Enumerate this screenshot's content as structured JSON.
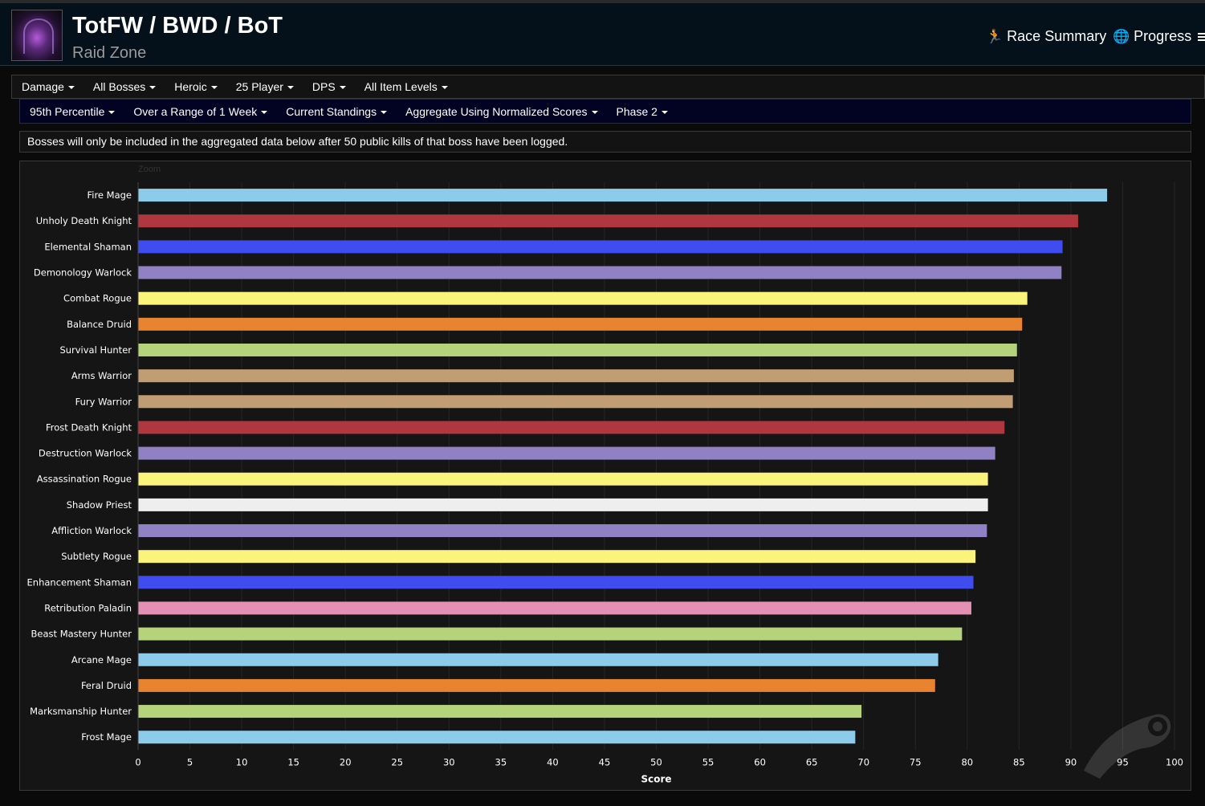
{
  "header": {
    "title": "TotFW / BWD / BoT",
    "subtitle": "Raid Zone",
    "zone_icon": "raid-zone-icon",
    "links": [
      {
        "label": "Race Summary",
        "icon": "runner-icon"
      },
      {
        "label": "Progress",
        "icon": "globe-icon"
      }
    ]
  },
  "filters_row1": [
    "Damage",
    "All Bosses",
    "Heroic",
    "25 Player",
    "DPS",
    "All Item Levels"
  ],
  "filters_row2": [
    "95th Percentile",
    "Over a Range of 1 Week",
    "Current Standings",
    "Aggregate Using Normalized Scores",
    "Phase 2"
  ],
  "notice": "Bosses will only be included in the aggregated data below after 50 public kills of that boss have been logged.",
  "chart_data": {
    "type": "bar",
    "orientation": "horizontal",
    "zoom_label": "Zoom",
    "xlabel": "Score",
    "xlim": [
      0,
      100
    ],
    "xticks": [
      0,
      5,
      10,
      15,
      20,
      25,
      30,
      35,
      40,
      45,
      50,
      55,
      60,
      65,
      70,
      75,
      80,
      85,
      90,
      95,
      100
    ],
    "grid": true,
    "categories": [
      "Fire Mage",
      "Unholy Death Knight",
      "Elemental Shaman",
      "Demonology Warlock",
      "Combat Rogue",
      "Balance Druid",
      "Survival Hunter",
      "Arms Warrior",
      "Fury Warrior",
      "Frost Death Knight",
      "Destruction Warlock",
      "Assassination Rogue",
      "Shadow Priest",
      "Affliction Warlock",
      "Subtlety Rogue",
      "Enhancement Shaman",
      "Retribution Paladin",
      "Beast Mastery Hunter",
      "Arcane Mage",
      "Feral Druid",
      "Marksmanship Hunter",
      "Frost Mage"
    ],
    "values": [
      93.5,
      90.7,
      89.2,
      89.1,
      85.8,
      85.3,
      84.8,
      84.5,
      84.4,
      83.6,
      82.7,
      82.0,
      82.0,
      81.9,
      80.8,
      80.6,
      80.4,
      79.5,
      77.2,
      76.9,
      69.8,
      69.2
    ],
    "colors": [
      "#8ccbea",
      "#b0373f",
      "#3f4cf0",
      "#9081c4",
      "#fbf47a",
      "#e8832f",
      "#b4d37a",
      "#c09d72",
      "#c09d72",
      "#b0373f",
      "#9081c4",
      "#fbf47a",
      "#eeeeee",
      "#9081c4",
      "#fbf47a",
      "#3f4cf0",
      "#e48fb4",
      "#b4d37a",
      "#8ccbea",
      "#e8832f",
      "#b4d37a",
      "#8ccbea"
    ]
  }
}
